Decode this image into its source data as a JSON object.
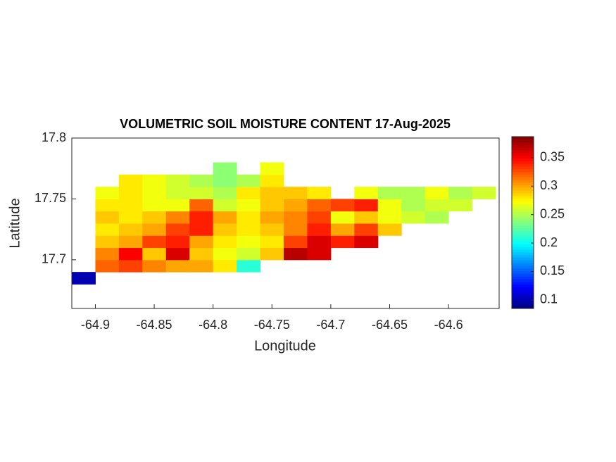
{
  "chart_data": {
    "type": "heatmap",
    "title": "VOLUMETRIC SOIL MOISTURE CONTENT 17-Aug-2025",
    "xlabel": "Longitude",
    "ylabel": "Latitude",
    "x": [
      -64.91,
      -64.89,
      -64.87,
      -64.85,
      -64.83,
      -64.81,
      -64.79,
      -64.77,
      -64.75,
      -64.73,
      -64.71,
      -64.69,
      -64.67,
      -64.65,
      -64.63,
      -64.61,
      -64.59,
      -64.57
    ],
    "y": [
      17.685,
      17.695,
      17.705,
      17.715,
      17.725,
      17.735,
      17.745,
      17.755,
      17.765,
      17.775
    ],
    "z": [
      [
        0.1,
        null,
        null,
        null,
        null,
        null,
        null,
        null,
        null,
        null,
        null,
        null,
        null,
        null,
        null,
        null,
        null,
        null
      ],
      [
        null,
        0.32,
        0.33,
        0.31,
        0.3,
        0.3,
        0.28,
        0.21,
        null,
        null,
        null,
        null,
        null,
        null,
        null,
        null,
        null,
        null
      ],
      [
        null,
        0.31,
        0.35,
        0.29,
        0.36,
        0.29,
        0.27,
        0.26,
        0.29,
        0.37,
        0.36,
        null,
        null,
        null,
        null,
        null,
        null,
        null
      ],
      [
        null,
        0.29,
        0.3,
        0.33,
        0.34,
        0.3,
        0.28,
        0.27,
        0.28,
        0.33,
        0.36,
        0.34,
        0.36,
        null,
        null,
        null,
        null,
        null
      ],
      [
        null,
        0.28,
        0.29,
        0.3,
        0.33,
        0.34,
        0.29,
        0.28,
        0.29,
        0.31,
        0.34,
        0.3,
        0.33,
        0.29,
        null,
        null,
        null,
        null
      ],
      [
        null,
        0.29,
        0.28,
        0.29,
        0.31,
        0.34,
        0.3,
        0.28,
        0.3,
        0.31,
        0.33,
        0.27,
        0.29,
        0.27,
        0.26,
        0.25,
        null,
        null
      ],
      [
        null,
        0.28,
        0.28,
        0.27,
        0.27,
        0.32,
        0.26,
        0.27,
        0.29,
        0.3,
        0.32,
        0.33,
        0.34,
        0.27,
        0.25,
        0.26,
        0.26,
        null
      ],
      [
        null,
        0.27,
        0.28,
        0.27,
        0.26,
        0.26,
        0.25,
        0.28,
        0.29,
        0.29,
        0.28,
        null,
        0.27,
        0.25,
        0.25,
        0.27,
        0.25,
        0.26
      ],
      [
        null,
        null,
        0.28,
        0.27,
        0.26,
        0.25,
        0.24,
        0.25,
        0.28,
        null,
        null,
        null,
        null,
        null,
        null,
        null,
        null,
        null
      ],
      [
        null,
        null,
        null,
        null,
        null,
        null,
        0.24,
        null,
        0.27,
        null,
        null,
        null,
        null,
        null,
        null,
        null,
        null,
        null
      ]
    ],
    "xlim": [
      -64.92,
      -64.557
    ],
    "ylim": [
      17.66,
      17.8
    ],
    "xticks": [
      -64.9,
      -64.85,
      -64.8,
      -64.75,
      -64.7,
      -64.65,
      -64.6
    ],
    "yticks": [
      17.7,
      17.75,
      17.8
    ],
    "colormap": "jet",
    "clim": [
      0.085,
      0.387
    ],
    "colorbar_ticks": [
      0.1,
      0.15,
      0.2,
      0.25,
      0.3,
      0.35
    ]
  }
}
